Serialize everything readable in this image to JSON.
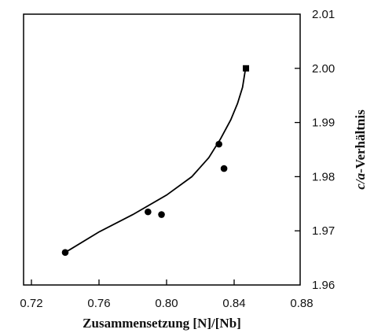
{
  "chart_data": {
    "type": "scatter",
    "xlabel": "Zusammensetzung [N]/[Nb]",
    "ylabel_italic": "c/a",
    "ylabel_rest": "-Verhältnis",
    "xlim": [
      0.72,
      0.88
    ],
    "ylim": [
      1.96,
      2.01
    ],
    "x_ticks": [
      "0.72",
      "0.76",
      "0.80",
      "0.84",
      "0.88"
    ],
    "y_ticks": [
      "1.96",
      "1.97",
      "1.98",
      "1.99",
      "2.00",
      "2.01"
    ],
    "y_axis_side": "right",
    "grid": false,
    "series": [
      {
        "marker": "circle",
        "x": [
          0.74,
          0.789,
          0.797,
          0.831,
          0.834
        ],
        "y": [
          1.966,
          1.9735,
          1.973,
          1.986,
          1.9815
        ]
      },
      {
        "marker": "square",
        "x": [
          0.847
        ],
        "y": [
          2.0
        ]
      }
    ],
    "fit_curve": {
      "x": [
        0.74,
        0.76,
        0.78,
        0.8,
        0.815,
        0.825,
        0.832,
        0.838,
        0.842,
        0.845,
        0.8465
      ],
      "y": [
        1.966,
        1.9698,
        1.973,
        1.9766,
        1.98,
        1.9835,
        1.987,
        1.9905,
        1.9935,
        1.9965,
        1.9995
      ]
    }
  }
}
